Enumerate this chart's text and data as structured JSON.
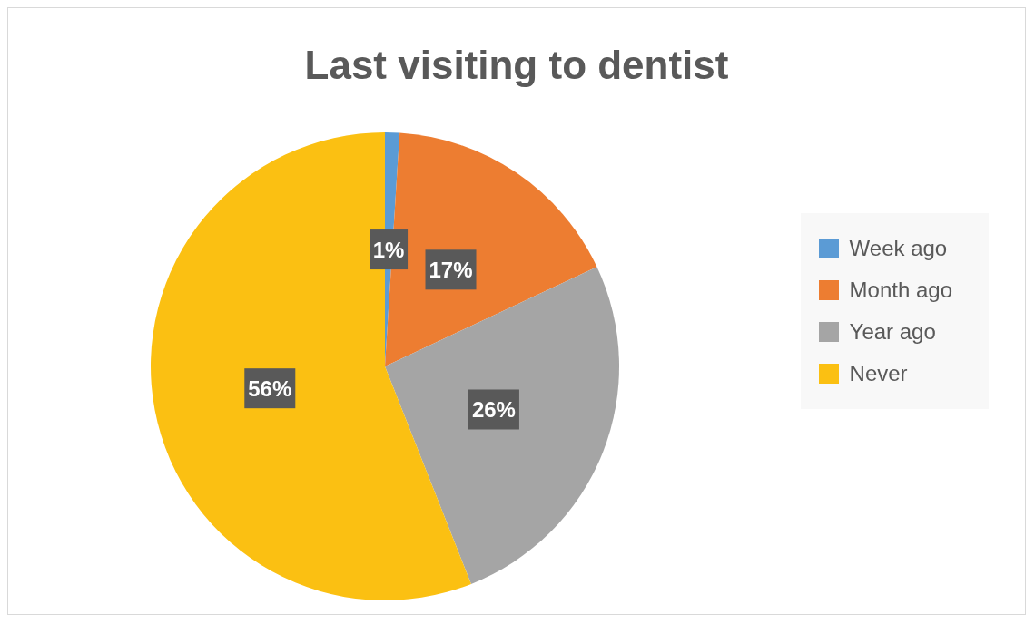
{
  "chart_data": {
    "type": "pie",
    "title": "Last visiting to dentist",
    "categories": [
      "Week ago",
      "Month ago",
      "Year ago",
      "Never"
    ],
    "values": [
      1,
      17,
      26,
      56
    ],
    "colors": [
      "#5b9bd5",
      "#ed7d31",
      "#a5a5a5",
      "#fbc012"
    ],
    "value_labels": [
      "1%",
      "17%",
      "26%",
      "56%"
    ],
    "legend": "right"
  }
}
